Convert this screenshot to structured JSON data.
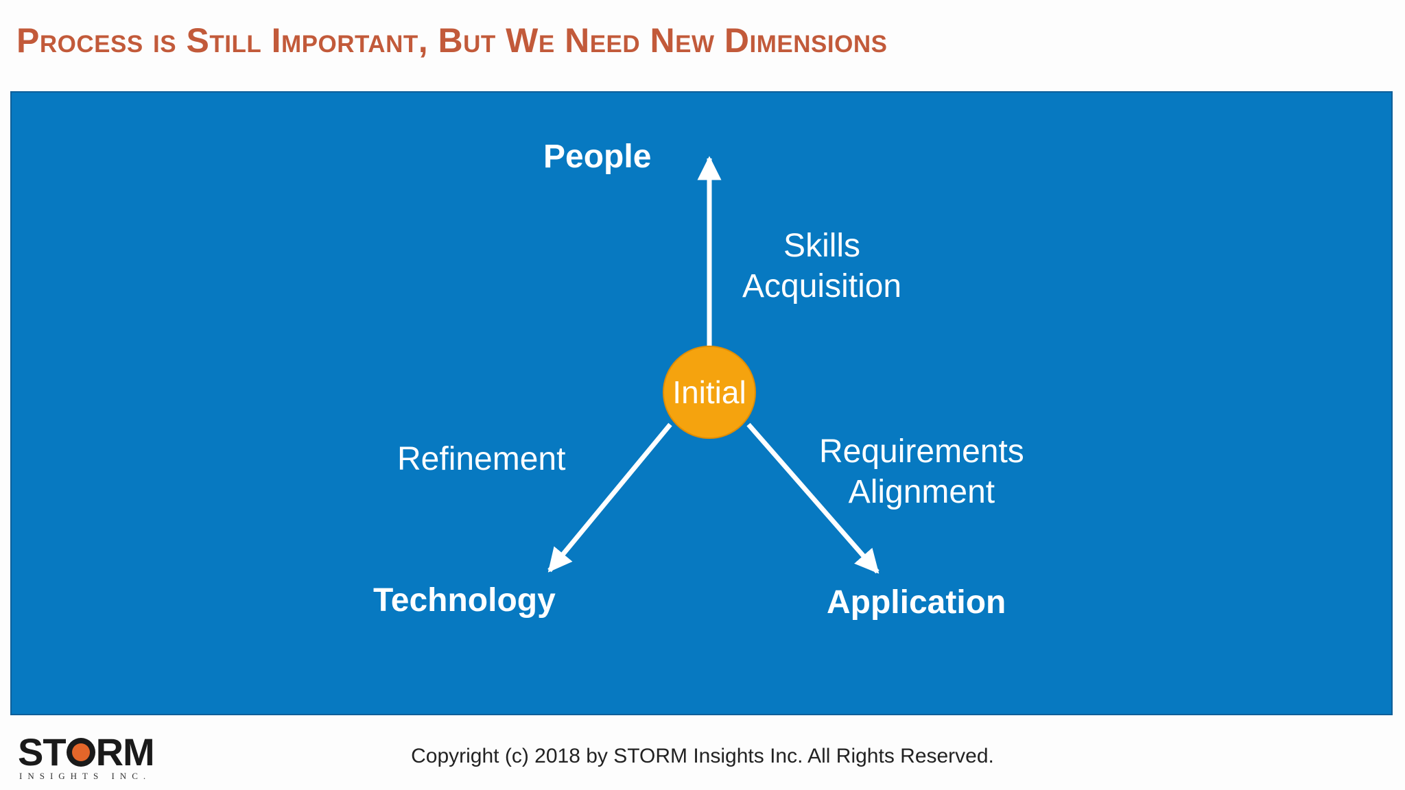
{
  "slide": {
    "title": "Process is Still Important, But We Need New Dimensions"
  },
  "diagram": {
    "center_node": "Initial",
    "axes": {
      "people": "People",
      "technology": "Technology",
      "application": "Application"
    },
    "edge_labels": {
      "skills_line1": "Skills",
      "skills_line2": "Acquisition",
      "refinement": "Refinement",
      "requirements_line1": "Requirements",
      "requirements_line2": "Alignment"
    },
    "colors": {
      "panel_background": "#0779c1",
      "center_node": "#f5a30e",
      "arrows": "#ffffff",
      "title": "#c25a3a"
    }
  },
  "footer": {
    "logo_word_prefix": "ST",
    "logo_word_suffix": "RM",
    "logo_subtitle": "INSIGHTS INC.",
    "copyright": "Copyright (c) 2018 by STORM Insights Inc. All Rights Reserved."
  }
}
